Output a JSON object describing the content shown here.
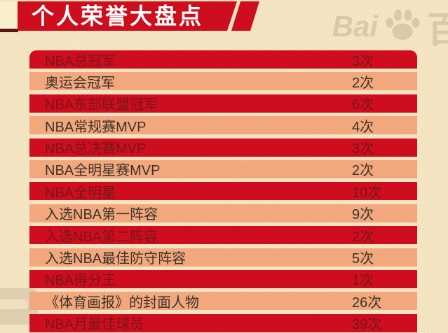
{
  "header": {
    "title": "个人荣誉大盘点"
  },
  "table": {
    "rows": [
      {
        "label": "NBA总冠军",
        "value": "3次"
      },
      {
        "label": "奥运会冠军",
        "value": "2次"
      },
      {
        "label": "NBA东部联盟冠军",
        "value": "6次"
      },
      {
        "label": "NBA常规赛MVP",
        "value": "4次"
      },
      {
        "label": "NBA总决赛MVP",
        "value": "3次"
      },
      {
        "label": "NBA全明星赛MVP",
        "value": "2次"
      },
      {
        "label": "NBA全明星",
        "value": "10次"
      },
      {
        "label": "入选NBA第一阵容",
        "value": "9次"
      },
      {
        "label": "入选NBA第二阵容",
        "value": "2次"
      },
      {
        "label": "入选NBA最佳防守阵容",
        "value": "5次"
      },
      {
        "label": "NBA得分王",
        "value": "1次"
      },
      {
        "label": "《体育画报》的封面人物",
        "value": "26次"
      },
      {
        "label": "NBA月最佳球员",
        "value": "39次"
      }
    ]
  },
  "chart_data": {
    "type": "table",
    "title": "个人荣誉大盘点",
    "categories": [
      "NBA总冠军",
      "奥运会冠军",
      "NBA东部联盟冠军",
      "NBA常规赛MVP",
      "NBA总决赛MVP",
      "NBA全明星赛MVP",
      "NBA全明星",
      "入选NBA第一阵容",
      "入选NBA第二阵容",
      "入选NBA最佳防守阵容",
      "NBA得分王",
      "《体育画报》的封面人物",
      "NBA月最佳球员"
    ],
    "values": [
      3,
      2,
      6,
      4,
      3,
      2,
      10,
      9,
      2,
      5,
      1,
      26,
      39
    ],
    "unit": "次",
    "legend_position": "none",
    "grid": false
  },
  "watermark": {
    "brand_text": "Bai",
    "partial_glyph": "百"
  },
  "colors": {
    "background": "#f6e7c4",
    "background_stripe": "#eedaba",
    "banner_red": "#ce0e1e",
    "banner_tail": "#f9efcf",
    "banner_shadow": "#571410",
    "row_red": "#ce0e1e",
    "row_red_text": "#7a1518",
    "row_light": "#f2a87c",
    "row_light_text": "#3a322b",
    "title_text": "#ffffff"
  }
}
